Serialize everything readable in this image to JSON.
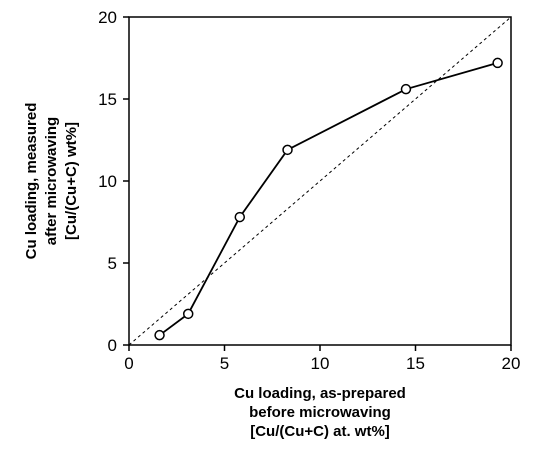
{
  "chart_data": {
    "type": "scatter",
    "xlabel": [
      "Cu loading, as-prepared",
      "before microwaving",
      "[Cu/(Cu+C) at. wt%]"
    ],
    "ylabel": [
      "Cu loading, measured",
      "after microwaving",
      "[Cu/(Cu+C) wt%]"
    ],
    "xlim": [
      0,
      20
    ],
    "ylim": [
      0,
      20
    ],
    "x_ticks": [
      0,
      5,
      10,
      15,
      20
    ],
    "y_ticks": [
      0,
      5,
      10,
      15,
      20
    ],
    "grid": false,
    "legend": "none",
    "series": [
      {
        "style": "line-with-open-circle-markers",
        "color": "#000000",
        "points": [
          {
            "x": 1.6,
            "y": 0.6
          },
          {
            "x": 3.1,
            "y": 1.9
          },
          {
            "x": 5.8,
            "y": 7.8
          },
          {
            "x": 8.3,
            "y": 11.9
          },
          {
            "x": 14.5,
            "y": 15.6
          },
          {
            "x": 19.3,
            "y": 17.2
          }
        ]
      }
    ],
    "reference_line": {
      "style": "dashed",
      "color": "#000000",
      "from": {
        "x": 0,
        "y": 0
      },
      "to": {
        "x": 20,
        "y": 20
      }
    }
  }
}
